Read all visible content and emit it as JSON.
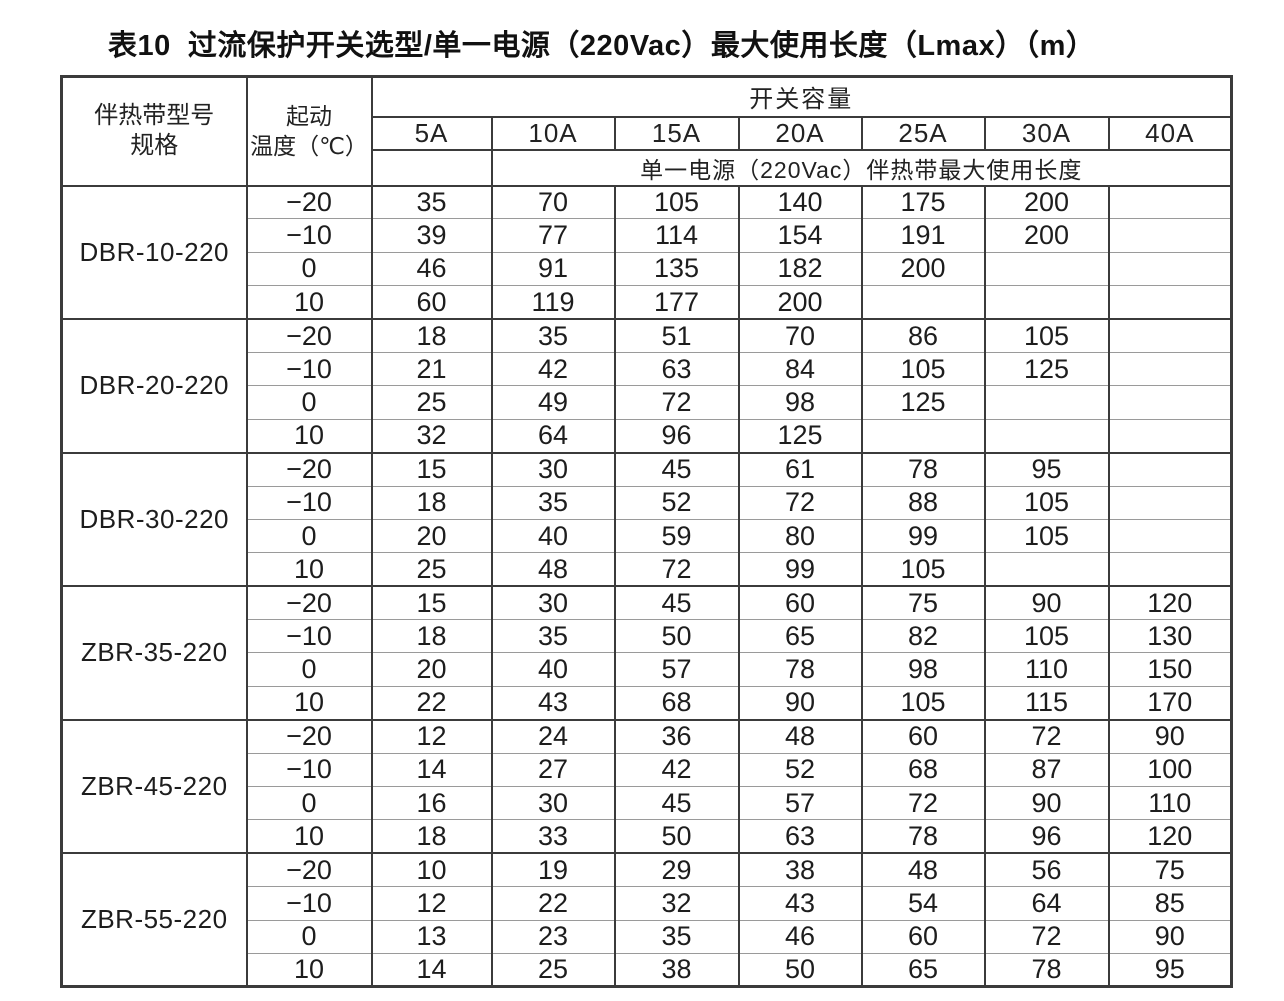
{
  "title": "表10  过流保护开关选型/单一电源（220Vac）最大使用长度（Lmax）（m）",
  "table": {
    "header": {
      "model_label_line1": "伴热带型号",
      "model_label_line2": "规格",
      "temp_label_line1": "起动",
      "temp_label_line2": "温度（℃）",
      "capacity_label": "开关容量",
      "capacity_columns": [
        "5A",
        "10A",
        "15A",
        "20A",
        "25A",
        "30A",
        "40A"
      ],
      "sub_header": "单一电源（220Vac）伴热带最大使用长度"
    },
    "blocks": [
      {
        "model": "DBR-10-220",
        "rows": [
          {
            "temp": "−20",
            "values": [
              "35",
              "70",
              "105",
              "140",
              "175",
              "200",
              ""
            ]
          },
          {
            "temp": "−10",
            "values": [
              "39",
              "77",
              "114",
              "154",
              "191",
              "200",
              ""
            ]
          },
          {
            "temp": "0",
            "values": [
              "46",
              "91",
              "135",
              "182",
              "200",
              "",
              ""
            ]
          },
          {
            "temp": "10",
            "values": [
              "60",
              "119",
              "177",
              "200",
              "",
              "",
              ""
            ]
          }
        ]
      },
      {
        "model": "DBR-20-220",
        "rows": [
          {
            "temp": "−20",
            "values": [
              "18",
              "35",
              "51",
              "70",
              "86",
              "105",
              ""
            ]
          },
          {
            "temp": "−10",
            "values": [
              "21",
              "42",
              "63",
              "84",
              "105",
              "125",
              ""
            ]
          },
          {
            "temp": "0",
            "values": [
              "25",
              "49",
              "72",
              "98",
              "125",
              "",
              ""
            ]
          },
          {
            "temp": "10",
            "values": [
              "32",
              "64",
              "96",
              "125",
              "",
              "",
              ""
            ]
          }
        ]
      },
      {
        "model": "DBR-30-220",
        "rows": [
          {
            "temp": "−20",
            "values": [
              "15",
              "30",
              "45",
              "61",
              "78",
              "95",
              ""
            ]
          },
          {
            "temp": "−10",
            "values": [
              "18",
              "35",
              "52",
              "72",
              "88",
              "105",
              ""
            ]
          },
          {
            "temp": "0",
            "values": [
              "20",
              "40",
              "59",
              "80",
              "99",
              "105",
              ""
            ]
          },
          {
            "temp": "10",
            "values": [
              "25",
              "48",
              "72",
              "99",
              "105",
              "",
              ""
            ]
          }
        ]
      },
      {
        "model": "ZBR-35-220",
        "rows": [
          {
            "temp": "−20",
            "values": [
              "15",
              "30",
              "45",
              "60",
              "75",
              "90",
              "120"
            ]
          },
          {
            "temp": "−10",
            "values": [
              "18",
              "35",
              "50",
              "65",
              "82",
              "105",
              "130"
            ]
          },
          {
            "temp": "0",
            "values": [
              "20",
              "40",
              "57",
              "78",
              "98",
              "110",
              "150"
            ]
          },
          {
            "temp": "10",
            "values": [
              "22",
              "43",
              "68",
              "90",
              "105",
              "115",
              "170"
            ]
          }
        ]
      },
      {
        "model": "ZBR-45-220",
        "rows": [
          {
            "temp": "−20",
            "values": [
              "12",
              "24",
              "36",
              "48",
              "60",
              "72",
              "90"
            ]
          },
          {
            "temp": "−10",
            "values": [
              "14",
              "27",
              "42",
              "52",
              "68",
              "87",
              "100"
            ]
          },
          {
            "temp": "0",
            "values": [
              "16",
              "30",
              "45",
              "57",
              "72",
              "90",
              "110"
            ]
          },
          {
            "temp": "10",
            "values": [
              "18",
              "33",
              "50",
              "63",
              "78",
              "96",
              "120"
            ]
          }
        ]
      },
      {
        "model": "ZBR-55-220",
        "rows": [
          {
            "temp": "−20",
            "values": [
              "10",
              "19",
              "29",
              "38",
              "48",
              "56",
              "75"
            ]
          },
          {
            "temp": "−10",
            "values": [
              "12",
              "22",
              "32",
              "43",
              "54",
              "64",
              "85"
            ]
          },
          {
            "temp": "0",
            "values": [
              "13",
              "23",
              "35",
              "46",
              "60",
              "72",
              "90"
            ]
          },
          {
            "temp": "10",
            "values": [
              "14",
              "25",
              "38",
              "50",
              "65",
              "78",
              "95"
            ]
          }
        ]
      }
    ]
  }
}
